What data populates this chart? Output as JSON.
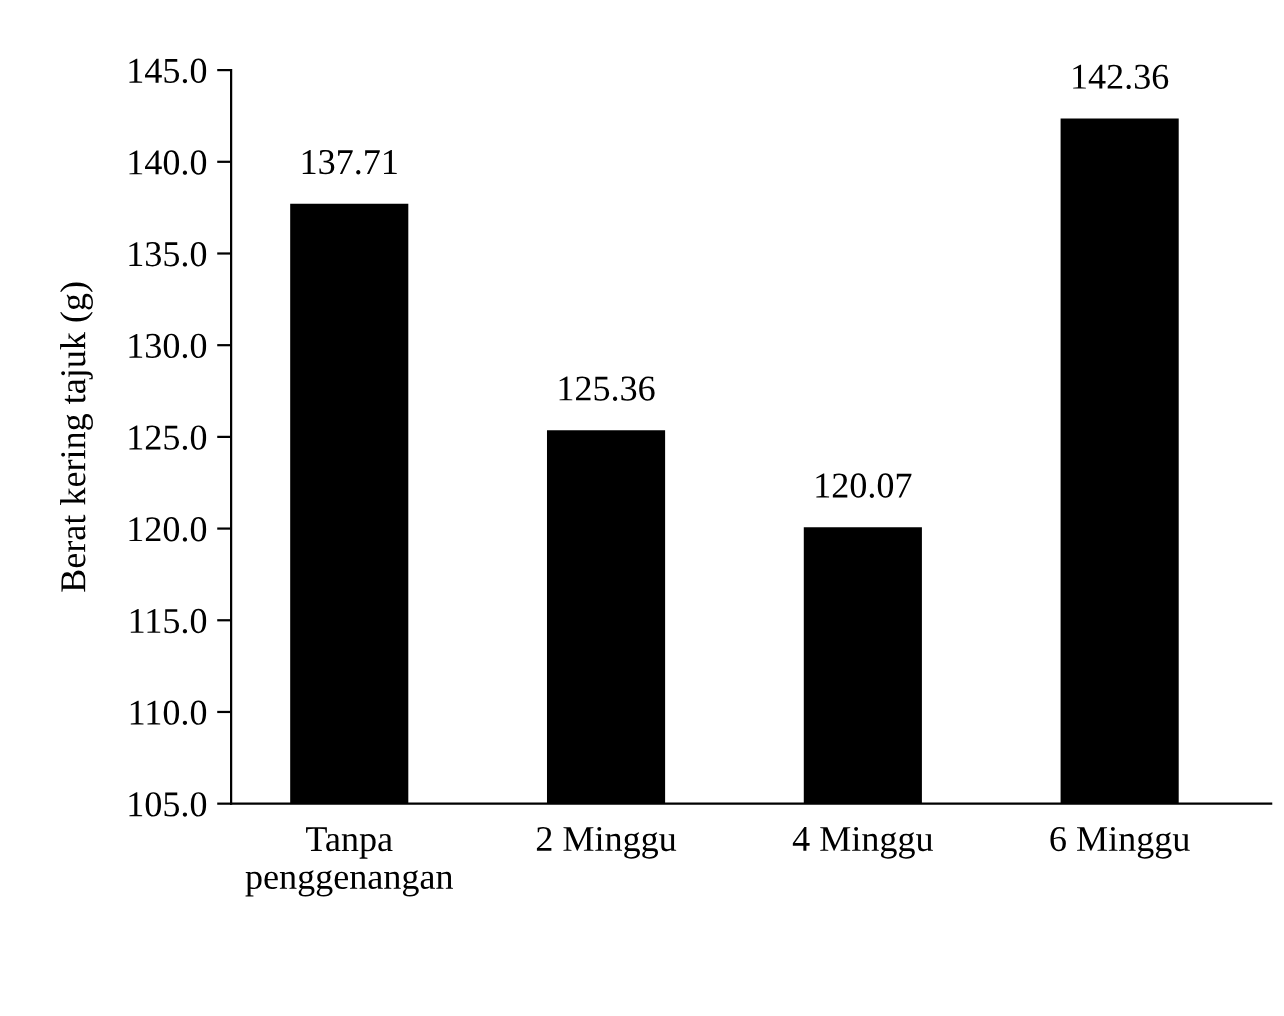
{
  "chart_data": {
    "type": "bar",
    "ylabel": "Berat kering tajuk (g)",
    "categories": [
      "Tanpa\npenggenangan",
      "2 Minggu",
      "4 Minggu",
      "6 Minggu"
    ],
    "values": [
      137.71,
      125.36,
      120.07,
      142.36
    ],
    "color": "#000000",
    "ylim": [
      105,
      145
    ],
    "yticks": [
      {
        "value": 105,
        "label": "105.0"
      },
      {
        "value": 110,
        "label": "110.0"
      },
      {
        "value": 115,
        "label": "115.0"
      },
      {
        "value": 120,
        "label": "120.0"
      },
      {
        "value": 125,
        "label": "125.0"
      },
      {
        "value": 130,
        "label": "130.0"
      },
      {
        "value": 135,
        "label": "135.0"
      },
      {
        "value": 140,
        "label": "140.0"
      },
      {
        "value": 145,
        "label": "145.0"
      }
    ],
    "data_labels": true,
    "grid": false,
    "legend": false
  }
}
